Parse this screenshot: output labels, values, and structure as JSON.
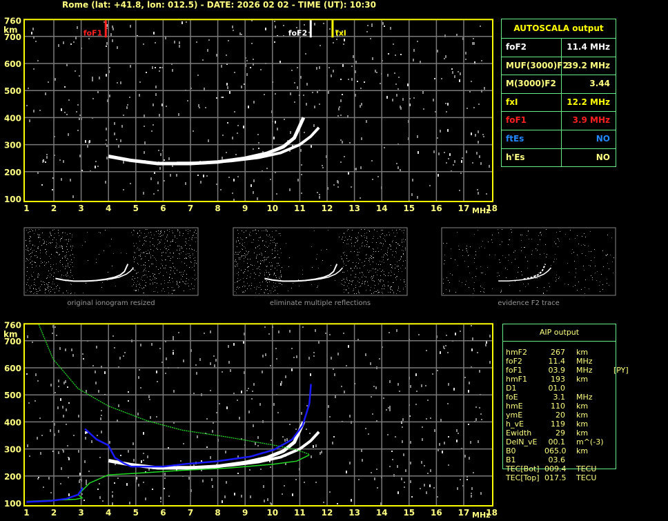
{
  "title": "Rome (lat: +41.8, lon: 012.5) - DATE: 2026 02 02 - TIME (UT): 10:30",
  "axes": {
    "y_ticks": [
      "760",
      "700",
      "600",
      "500",
      "400",
      "300",
      "200",
      "100"
    ],
    "y_values": [
      760,
      700,
      600,
      500,
      400,
      300,
      200,
      100
    ],
    "y_unit": "km",
    "x_ticks": [
      "1",
      "2",
      "3",
      "4",
      "5",
      "6",
      "7",
      "8",
      "9",
      "10",
      "11",
      "12",
      "13",
      "14",
      "15",
      "16",
      "17",
      "18"
    ],
    "x_unit": "MHz",
    "xlim": [
      1,
      18
    ],
    "ylim": [
      100,
      760
    ]
  },
  "markers": [
    {
      "label": "foF1",
      "freq": 3.9,
      "color": "#ff2020"
    },
    {
      "label": "foF2",
      "freq": 11.4,
      "color": "#ffffff"
    },
    {
      "label": "fxI",
      "freq": 12.2,
      "color": "#ffff00"
    }
  ],
  "traces": {
    "o_trace": [
      [
        4.0,
        257
      ],
      [
        4.8,
        242
      ],
      [
        5.8,
        230
      ],
      [
        7,
        230
      ],
      [
        8,
        236
      ],
      [
        9,
        250
      ],
      [
        9.8,
        268
      ],
      [
        10.4,
        292
      ],
      [
        10.8,
        325
      ],
      [
        11.14,
        400
      ]
    ],
    "x_trace": [
      [
        6.5,
        232
      ],
      [
        7.5,
        232
      ],
      [
        8.5,
        240
      ],
      [
        9.5,
        252
      ],
      [
        10.3,
        270
      ],
      [
        11,
        300
      ],
      [
        11.4,
        330
      ],
      [
        11.7,
        363
      ]
    ],
    "profile_upper": [
      [
        1.45,
        760
      ],
      [
        1.97,
        633
      ],
      [
        2.89,
        523
      ],
      [
        3.99,
        459
      ],
      [
        5.42,
        404
      ],
      [
        6.68,
        370
      ],
      [
        8.36,
        344
      ],
      [
        10.05,
        314
      ],
      [
        10.89,
        297
      ],
      [
        11.35,
        280
      ]
    ],
    "profile_lower": [
      [
        1.0,
        106
      ],
      [
        2.81,
        114
      ],
      [
        3.04,
        119
      ],
      [
        2.89,
        131
      ],
      [
        3.31,
        174
      ],
      [
        3.99,
        204
      ],
      [
        5.0,
        210
      ],
      [
        6.68,
        221
      ],
      [
        8.36,
        229
      ],
      [
        10.05,
        244
      ],
      [
        10.89,
        255
      ],
      [
        11.35,
        278
      ]
    ],
    "aip_e": [
      [
        1.0,
        104
      ],
      [
        1.88,
        108
      ],
      [
        2.47,
        116
      ],
      [
        2.89,
        131
      ],
      [
        3.06,
        157
      ]
    ],
    "aip_f": [
      [
        3.14,
        374
      ],
      [
        3.57,
        335
      ],
      [
        3.99,
        314
      ],
      [
        4.24,
        267
      ],
      [
        4.58,
        246
      ],
      [
        4.83,
        235
      ],
      [
        6.01,
        235
      ],
      [
        6.85,
        245
      ],
      [
        7.94,
        254
      ],
      [
        9.2,
        272
      ],
      [
        10.05,
        297
      ],
      [
        10.72,
        335
      ],
      [
        11.1,
        386
      ],
      [
        11.35,
        467
      ],
      [
        11.41,
        540
      ]
    ],
    "colors": {
      "trace": "#ffffff",
      "profile": "#22dd22",
      "aip": "#1a1aff"
    }
  },
  "thumbnails": [
    {
      "caption": "original ionogram resized"
    },
    {
      "caption": "eliminate multiple reflections"
    },
    {
      "caption": "evidence F2 trace"
    }
  ],
  "autoscala": {
    "header": "AUTOSCALA output",
    "rows": [
      {
        "key": "foF2",
        "value": "11.4 MHz",
        "color": "#ffffff"
      },
      {
        "key": "MUF(3000)F2",
        "value": "39.2 MHz",
        "color": "#ffff80"
      },
      {
        "key": "M(3000)F2",
        "value": "3.44",
        "color": "#ffff80"
      },
      {
        "key": "fxI",
        "value": "12.2 MHz",
        "color": "#ffff00"
      },
      {
        "key": "foF1",
        "value": "3.9 MHz",
        "color": "#ff2020"
      },
      {
        "key": "ftEs",
        "value": "NO",
        "color": "#2288ff"
      },
      {
        "key": "h'Es",
        "value": "NO",
        "color": "#ffff80"
      }
    ]
  },
  "aip": {
    "header": "AIP output",
    "rows": [
      {
        "name": "hmF2",
        "value": "267",
        "unit": "km",
        "note": ""
      },
      {
        "name": "foF2",
        "value": "11.4",
        "unit": "MHz",
        "note": ""
      },
      {
        "name": "foF1",
        "value": "03.9",
        "unit": "MHz",
        "note": "[PY]"
      },
      {
        "name": "hmF1",
        "value": "193",
        "unit": "km",
        "note": ""
      },
      {
        "name": "D1",
        "value": "01.0",
        "unit": "",
        "note": ""
      },
      {
        "name": "foE",
        "value": "3.1",
        "unit": "MHz",
        "note": ""
      },
      {
        "name": "hmE",
        "value": "110",
        "unit": "km",
        "note": ""
      },
      {
        "name": "ymE",
        "value": "20",
        "unit": "km",
        "note": ""
      },
      {
        "name": "h_vE",
        "value": "119",
        "unit": "km",
        "note": ""
      },
      {
        "name": "Ewidth",
        "value": "29",
        "unit": "km",
        "note": ""
      },
      {
        "name": "DelN_vE",
        "value": "00.1",
        "unit": "m^(-3)",
        "note": ""
      },
      {
        "name": "B0",
        "value": "065.0",
        "unit": "km",
        "note": ""
      },
      {
        "name": "B1",
        "value": "03.6",
        "unit": "",
        "note": ""
      },
      {
        "name": "TEC[Bot]",
        "value": "009.4",
        "unit": "TECU",
        "note": ""
      },
      {
        "name": "TEC[Top]",
        "value": "017.5",
        "unit": "TECU",
        "note": ""
      }
    ]
  }
}
